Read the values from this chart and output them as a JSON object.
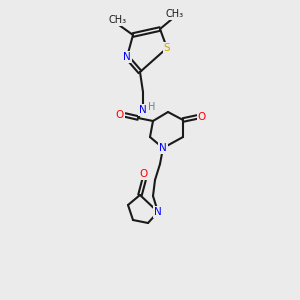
{
  "bg_color": "#ebebeb",
  "bond_color": "#1a1a1a",
  "bond_lw": 1.5,
  "atom_colors": {
    "N": "#0000ff",
    "O": "#ff0000",
    "S": "#ccaa00",
    "H": "#5a8a8a",
    "C": "#1a1a1a"
  },
  "font_size": 7.5,
  "label_font_size": 7.5
}
